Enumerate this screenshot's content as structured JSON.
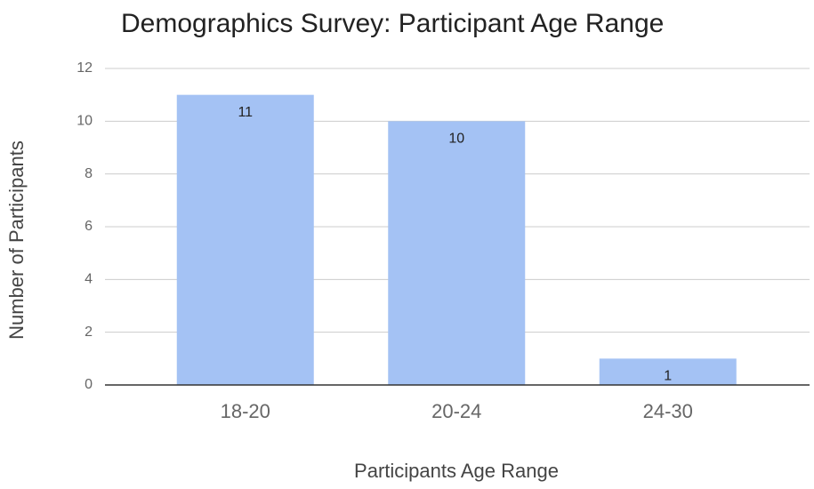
{
  "chart_data": {
    "type": "bar",
    "title": "Demographics Survey: Participant Age Range",
    "x_label": "Participants Age Range",
    "y_label": "Number of Participants",
    "categories": [
      "18-20",
      "20-24",
      "24-30"
    ],
    "values": [
      11,
      10,
      1
    ],
    "color": "#a4c2f4",
    "ylim": [
      0,
      12
    ],
    "yticks": [
      0,
      2,
      4,
      6,
      8,
      10,
      12
    ],
    "grid": true
  }
}
